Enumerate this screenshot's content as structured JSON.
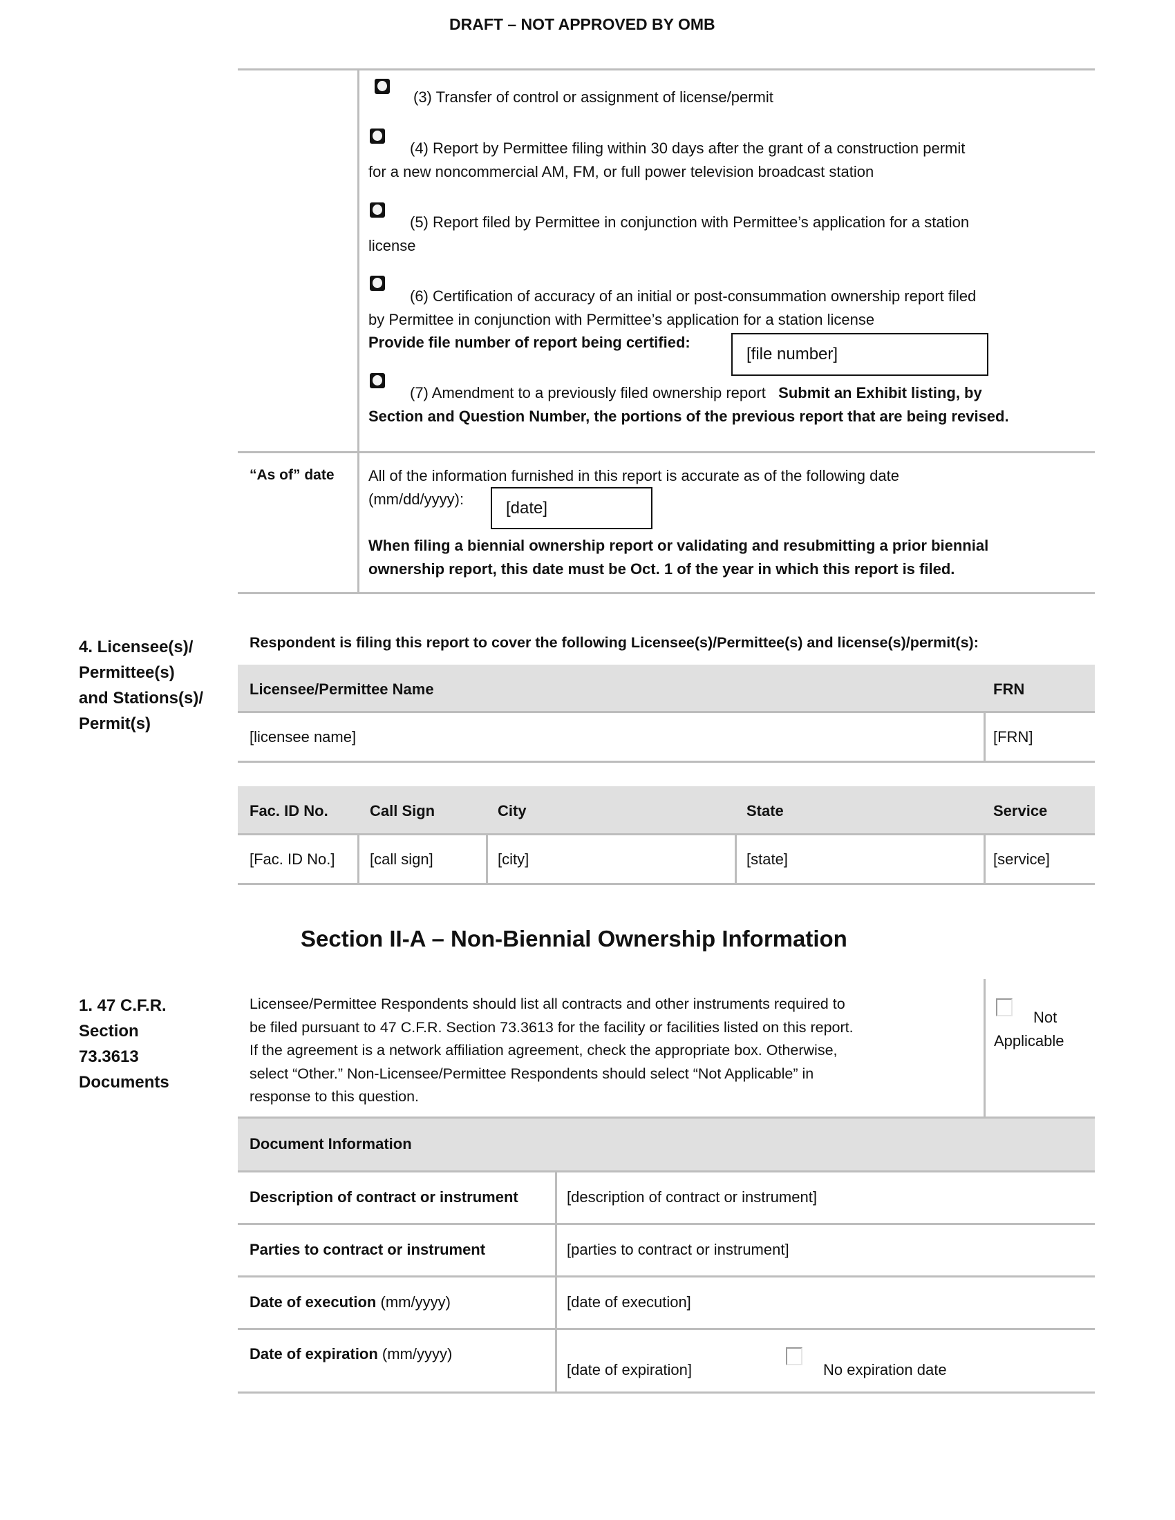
{
  "header": {
    "draft": "DRAFT – NOT APPROVED BY OMB"
  },
  "report_type": {
    "items": [
      {
        "lines": [
          "(3) Transfer of control or assignment of license/permit"
        ]
      },
      {
        "lines": [
          "(4) Report by Permittee filing within 30 days after the grant of a construction permit",
          "for a new noncommercial AM, FM, or full power television broadcast station"
        ]
      },
      {
        "lines": [
          "(5) Report filed by Permittee in conjunction with Permittee’s application for a station",
          "license"
        ]
      },
      {
        "lines": [
          "(6) Certification of accuracy of an initial or post-consummation ownership report filed",
          "by Permittee in conjunction with Permittee’s application for a station license"
        ]
      },
      {
        "lines": [
          "(7) Amendment to a previously filed ownership report"
        ],
        "bold_inline": "Submit an Exhibit listing, by",
        "bold_line2": "Section and Question Number, the portions of the previous report that are being revised."
      }
    ],
    "file_number_label": "Provide file number of report being certified:",
    "file_number_value": "[file number]"
  },
  "as_of": {
    "label": "“As of” date",
    "text1": "All of the information furnished in this report is accurate as of the following date",
    "text2": "(mm/dd/yyyy):",
    "date_value": "[date]",
    "note1": "When filing a biennial ownership report or validating and resubmitting a prior biennial",
    "note2": "ownership report, this date must be Oct. 1 of the year in which this report is filed."
  },
  "section4": {
    "label": [
      "4.  Licensee(s)/",
      "Permittee(s)",
      "and Stations(s)/",
      "Permit(s)"
    ],
    "intro": "Respondent is filing this report to cover the following Licensee(s)/Permittee(s) and license(s)/permit(s):",
    "licensee_table": {
      "headers": [
        "Licensee/Permittee Name",
        "FRN"
      ],
      "row": [
        "[licensee name]",
        "[FRN]"
      ]
    },
    "station_table": {
      "headers": [
        "Fac. ID No.",
        "Call Sign",
        "City",
        "State",
        "Service"
      ],
      "row": [
        "[Fac. ID No.]",
        "[call sign]",
        "[city]",
        "[state]",
        "[service]"
      ]
    }
  },
  "section_iia": {
    "title": "Section II-A – Non-Biennial Ownership Information"
  },
  "q1": {
    "label": [
      "1.  47 C.F.R.",
      "Section",
      "73.3613",
      "Documents"
    ],
    "text": [
      "Licensee/Permittee Respondents should list all contracts and other instruments required to",
      "be filed pursuant to 47 C.F.R. Section 73.3613 for the facility or facilities listed on this report.",
      "If the agreement is a network affiliation agreement, check the appropriate box.  Otherwise,",
      "select “Other.”  Non-Licensee/Permittee Respondents should select “Not Applicable” in",
      "response to this question."
    ],
    "not_applicable": [
      "Not",
      "Applicable"
    ],
    "doc_info_header": "Document Information",
    "rows": [
      {
        "label": "Description of contract or instrument",
        "suffix": "",
        "value": "[description of contract or instrument]"
      },
      {
        "label": "Parties to contract or instrument",
        "suffix": "",
        "value": "[parties to contract or instrument]"
      },
      {
        "label": "Date of execution",
        "suffix": " (mm/yyyy)",
        "value": "[date of execution]"
      },
      {
        "label": "Date of expiration",
        "suffix": " (mm/yyyy)",
        "value": "[date of expiration]"
      }
    ],
    "no_expiration": "No expiration date"
  }
}
